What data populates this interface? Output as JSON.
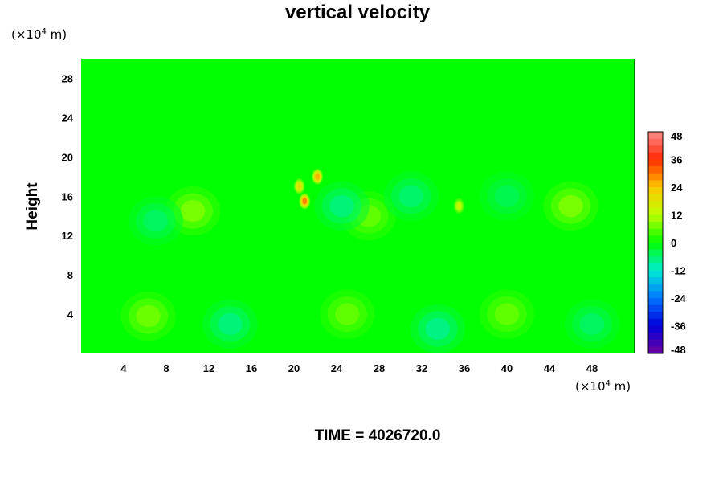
{
  "chart_data": {
    "type": "heatmap",
    "title": "vertical velocity",
    "ylabel": "Height",
    "y_unit": "(×10",
    "y_unit_exp": "4",
    "y_unit_tail": " m)",
    "x_unit": "(×10",
    "x_unit_exp": "4",
    "x_unit_tail": " m)",
    "xlim": [
      0,
      52
    ],
    "ylim": [
      0,
      30
    ],
    "x_ticks": [
      "4",
      "8",
      "12",
      "16",
      "20",
      "24",
      "28",
      "32",
      "36",
      "40",
      "44",
      "48"
    ],
    "y_ticks": [
      "4",
      "8",
      "12",
      "16",
      "20",
      "24",
      "28"
    ],
    "colorbar": {
      "range": [
        -48,
        48
      ],
      "ticks": [
        "48",
        "36",
        "24",
        "12",
        "0",
        "-12",
        "-24",
        "-36",
        "-48"
      ]
    },
    "features": [
      {
        "x": 6.3,
        "y": 3.8,
        "value": 9
      },
      {
        "x": 25.0,
        "y": 4.0,
        "value": 8
      },
      {
        "x": 40.0,
        "y": 4.0,
        "value": 8
      },
      {
        "x": 14.0,
        "y": 3.0,
        "value": -9
      },
      {
        "x": 33.5,
        "y": 2.5,
        "value": -10
      },
      {
        "x": 48.0,
        "y": 3.0,
        "value": -7
      },
      {
        "x": 21.0,
        "y": 15.5,
        "value": 30
      },
      {
        "x": 22.2,
        "y": 18.0,
        "value": 26
      },
      {
        "x": 20.5,
        "y": 17.0,
        "value": 20
      },
      {
        "x": 35.5,
        "y": 15.0,
        "value": 14
      },
      {
        "x": 10.5,
        "y": 14.5,
        "value": 10
      },
      {
        "x": 46.0,
        "y": 15.0,
        "value": 10
      },
      {
        "x": 27.0,
        "y": 14.0,
        "value": 8
      },
      {
        "x": 24.5,
        "y": 15.0,
        "value": -9
      },
      {
        "x": 31.0,
        "y": 16.0,
        "value": -8
      },
      {
        "x": 7.0,
        "y": 13.5,
        "value": -7
      },
      {
        "x": 40.0,
        "y": 16.0,
        "value": -6
      }
    ]
  },
  "footer": {
    "time_text": "TIME = 4026720.0"
  }
}
